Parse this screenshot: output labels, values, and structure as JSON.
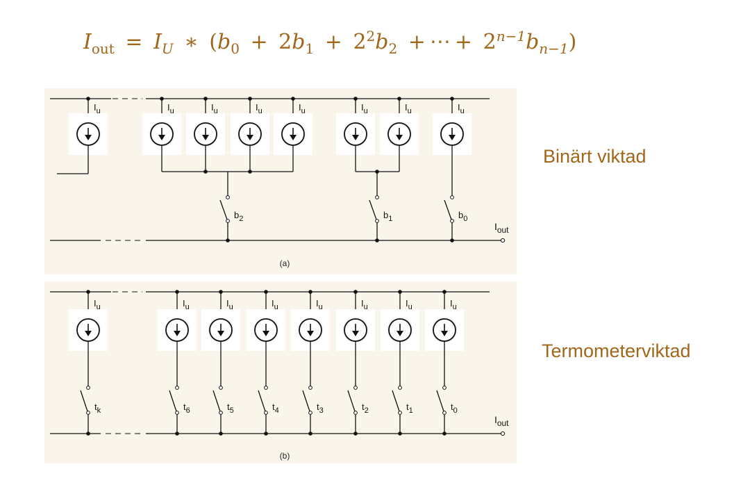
{
  "formula": {
    "lhs_base": "I",
    "lhs_sub": "out",
    "eq": "=",
    "unit_base": "I",
    "unit_sub": "U",
    "times": "∗",
    "terms": [
      {
        "coef": "",
        "exp": "",
        "var": "b",
        "sub": "0"
      },
      {
        "coef": "2",
        "exp": "",
        "var": "b",
        "sub": "1"
      },
      {
        "coef": "2",
        "exp": "2",
        "var": "b",
        "sub": "2"
      },
      {
        "coef": "2",
        "exp": "n−1",
        "var": "b",
        "sub": "n−1"
      }
    ],
    "ellipsis": "⋯"
  },
  "labels": {
    "binary": "Binärt viktad",
    "thermo": "Termometerviktad"
  },
  "diagram_a": {
    "caption": "(a)",
    "source_label_base": "I",
    "source_label_sub": "u",
    "out_base": "I",
    "out_sub": "out",
    "switches": [
      {
        "base": "b",
        "sub": "2"
      },
      {
        "base": "b",
        "sub": "1"
      },
      {
        "base": "b",
        "sub": "0"
      }
    ]
  },
  "diagram_b": {
    "caption": "(b)",
    "source_label_base": "I",
    "source_label_sub": "u",
    "out_base": "I",
    "out_sub": "out",
    "switches": [
      {
        "base": "t",
        "sub": "k"
      },
      {
        "base": "t",
        "sub": "6"
      },
      {
        "base": "t",
        "sub": "5"
      },
      {
        "base": "t",
        "sub": "4"
      },
      {
        "base": "t",
        "sub": "3"
      },
      {
        "base": "t",
        "sub": "2"
      },
      {
        "base": "t",
        "sub": "1"
      },
      {
        "base": "t",
        "sub": "0"
      }
    ]
  },
  "colors": {
    "accent": "#a0661a",
    "panel": "#f9f5ea",
    "line": "#111111"
  }
}
